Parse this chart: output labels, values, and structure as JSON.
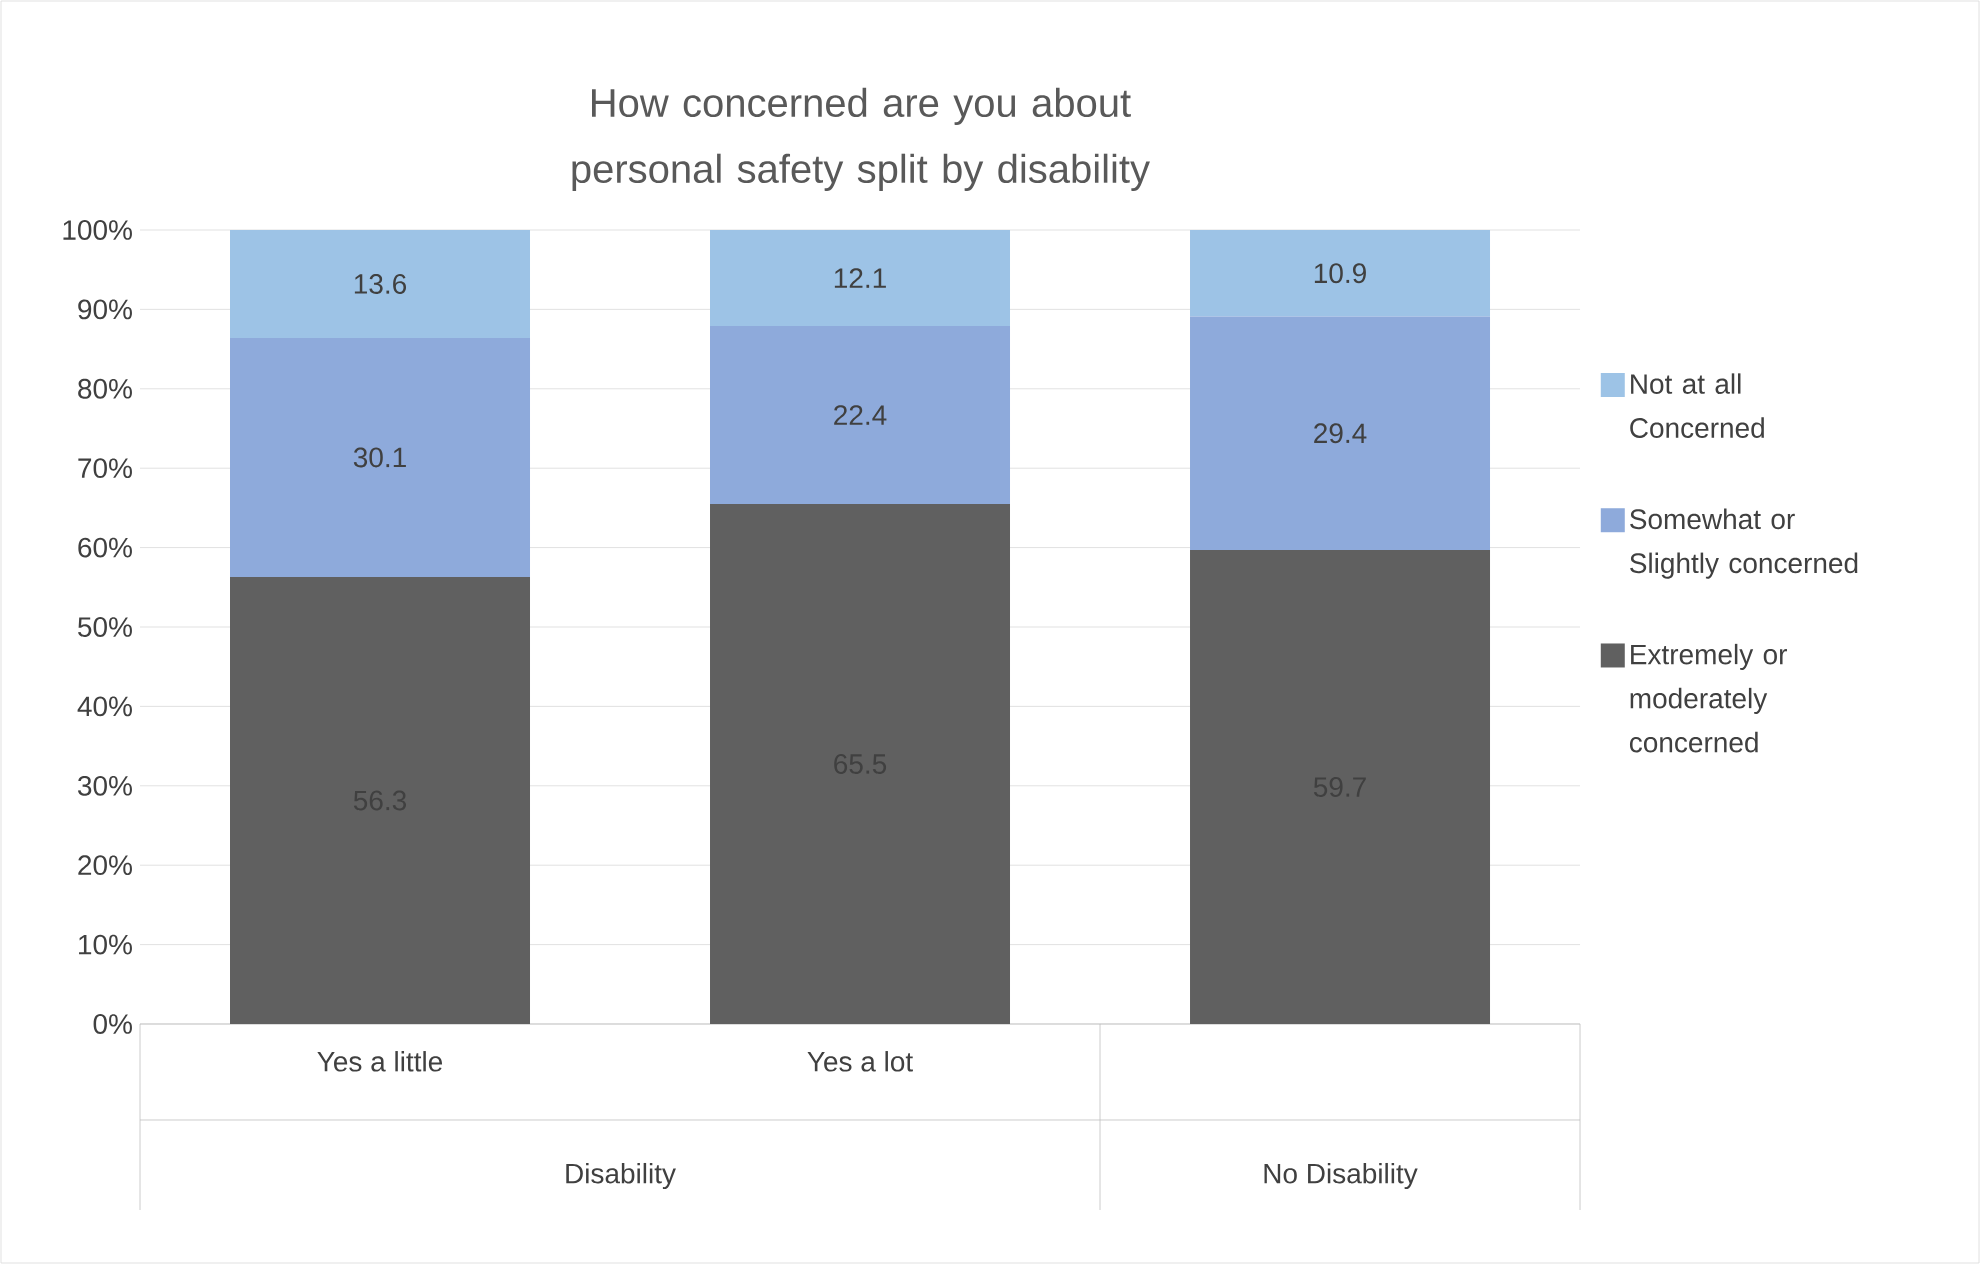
{
  "chart_data": {
    "type": "bar",
    "stacked": true,
    "title": "How concerned are you about personal safety split by disability",
    "categories": [
      "Yes a little",
      "Yes a lot",
      null
    ],
    "series": [
      {
        "name": "Extremely or moderately concerned",
        "color": "#606060",
        "values": [
          56.3,
          65.5,
          59.7
        ]
      },
      {
        "name": "Somewhat or Slightly concerned",
        "color": "#8eaadb",
        "values": [
          30.1,
          22.4,
          29.4
        ]
      },
      {
        "name": "Not at all Concerned",
        "color": "#9dc3e6",
        "values": [
          13.6,
          12.1,
          10.9
        ]
      }
    ],
    "ylim": [
      0,
      100
    ],
    "yticks": [
      {
        "value": 0,
        "label": "0%"
      },
      {
        "value": 10,
        "label": "10%"
      },
      {
        "value": 20,
        "label": "20%"
      },
      {
        "value": 30,
        "label": "30%"
      },
      {
        "value": 40,
        "label": "40%"
      },
      {
        "value": 50,
        "label": "50%"
      },
      {
        "value": 60,
        "label": "60%"
      },
      {
        "value": 70,
        "label": "70%"
      },
      {
        "value": 80,
        "label": "80%"
      },
      {
        "value": 90,
        "label": "90%"
      },
      {
        "value": 100,
        "label": "100%"
      }
    ],
    "grid": "y",
    "legend": "right",
    "data_labels": true,
    "annotations": [
      "Disability",
      "No Disability"
    ]
  }
}
